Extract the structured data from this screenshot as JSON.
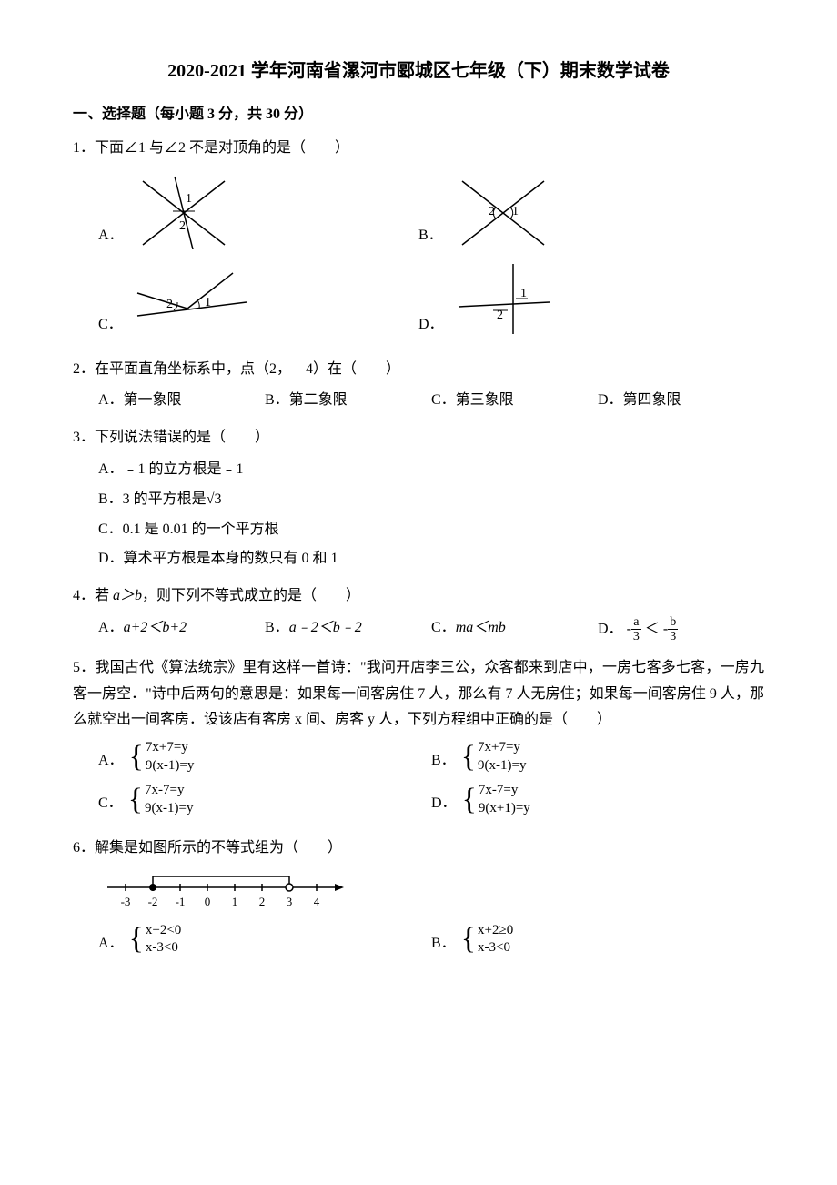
{
  "title": "2020-2021 学年河南省漯河市郾城区七年级（下）期末数学试卷",
  "section": "一、选择题（每小题 3 分，共 30 分）",
  "q1": {
    "text": "1．下面∠1 与∠2 不是对顶角的是（　　）",
    "A": "A．",
    "B": "B．",
    "C": "C．",
    "D": "D．"
  },
  "q2": {
    "text": "2．在平面直角坐标系中，点（2，﹣4）在（　　）",
    "A": "A．第一象限",
    "B": "B．第二象限",
    "C": "C．第三象限",
    "D": "D．第四象限"
  },
  "q3": {
    "text": "3．下列说法错误的是（　　）",
    "A": "A．﹣1 的立方根是﹣1",
    "B_pre": "B．3 的平方根是",
    "B_rad": "3",
    "C": "C．0.1 是 0.01 的一个平方根",
    "D": "D．算术平方根是本身的数只有 0 和 1"
  },
  "q4": {
    "text_pre": "4．若 ",
    "text_ab": "a＞b",
    "text_post": "，则下列不等式成立的是（　　）",
    "A_pre": "A．",
    "A_eq": "a+2＜b+2",
    "B_pre": "B．",
    "B_eq": "a﹣2＜b﹣2",
    "C_pre": "C．",
    "C_eq": "ma＜mb",
    "D_pre": "D．",
    "D_lhs_num": "a",
    "D_lhs_den": "3",
    "D_rhs_num": "b",
    "D_rhs_den": "3"
  },
  "q5": {
    "text": "5．我国古代《算法统宗》里有这样一首诗：\"我问开店李三公，众客都来到店中，一房七客多七客，一房九客一房空．\"诗中后两句的意思是：如果每一间客房住 7 人，那么有 7 人无房住；如果每一间客房住 9 人，那么就空出一间客房．设该店有客房 x 间、房客 y 人，下列方程组中正确的是（　　）",
    "A": "A．",
    "A_eq1": "7x+7=y",
    "A_eq2": "9(x-1)=y",
    "B": "B．",
    "B_eq1": "7x+7=y",
    "B_eq2": "9(x-1)=y",
    "C": "C．",
    "C_eq1": "7x-7=y",
    "C_eq2": "9(x-1)=y",
    "D": "D．",
    "D_eq1": "7x-7=y",
    "D_eq2": "9(x+1)=y"
  },
  "q6": {
    "text": "6．解集是如图所示的不等式组为（　　）",
    "A": "A．",
    "A_eq1": "x+2<0",
    "A_eq2": "x-3<0",
    "B": "B．",
    "B_eq1": "x+2≥0",
    "B_eq2": "x-3<0"
  },
  "svg": {
    "stroke": "#000000",
    "fill": "#ffffff",
    "label_fontsize": 14,
    "numberline": {
      "ticks": [
        -3,
        -2,
        -1,
        0,
        1,
        2,
        3,
        4
      ],
      "closed_at": -2,
      "open_at": 3
    }
  }
}
